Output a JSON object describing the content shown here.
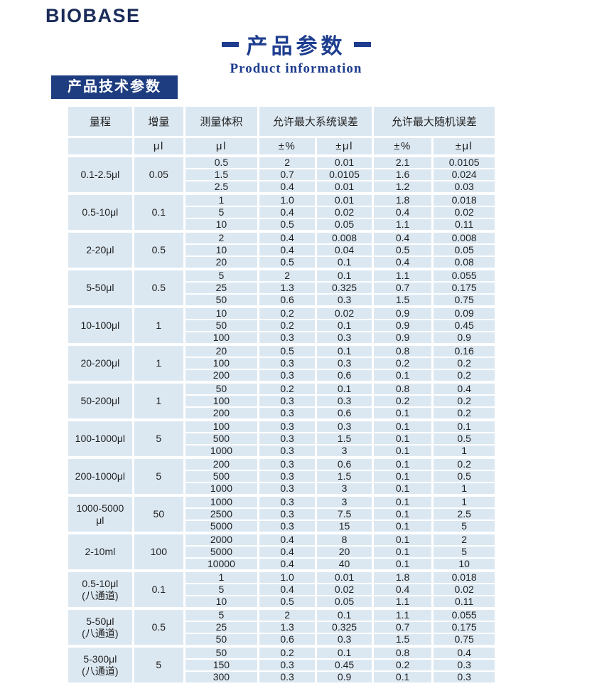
{
  "brand": {
    "logo_text": "BIOBASE"
  },
  "header": {
    "title_zh": "产品参数",
    "title_en": "Product information",
    "section_label": "产品技术参数"
  },
  "colors": {
    "brand_navy": "#1b2c59",
    "title_blue": "#1e3d8f",
    "badge_bg": "#1e3d80",
    "cell_bg": "#dce8f1",
    "text": "#1f1f1f"
  },
  "table": {
    "column_headers": {
      "range": "量程",
      "increment": "增量",
      "volume": "测量体积",
      "sys_error": "允许最大系统误差",
      "rand_error": "允许最大随机误差"
    },
    "unit_row": [
      "",
      "μl",
      "μl",
      "±%",
      "±μl",
      "±%",
      "±μl"
    ],
    "groups": [
      {
        "range": "0.1-2.5μl",
        "increment": "0.05",
        "rows": [
          [
            "0.5",
            "2",
            "0.01",
            "2.1",
            "0.0105"
          ],
          [
            "1.5",
            "0.7",
            "0.0105",
            "1.6",
            "0.024"
          ],
          [
            "2.5",
            "0.4",
            "0.01",
            "1.2",
            "0.03"
          ]
        ]
      },
      {
        "range": "0.5-10μl",
        "increment": "0.1",
        "rows": [
          [
            "1",
            "1.0",
            "0.01",
            "1.8",
            "0.018"
          ],
          [
            "5",
            "0.4",
            "0.02",
            "0.4",
            "0.02"
          ],
          [
            "10",
            "0.5",
            "0.05",
            "1.1",
            "0.11"
          ]
        ]
      },
      {
        "range": "2-20μl",
        "increment": "0.5",
        "rows": [
          [
            "2",
            "0.4",
            "0.008",
            "0.4",
            "0.008"
          ],
          [
            "10",
            "0.4",
            "0.04",
            "0.5",
            "0.05"
          ],
          [
            "20",
            "0.5",
            "0.1",
            "0.4",
            "0.08"
          ]
        ]
      },
      {
        "range": "5-50μl",
        "increment": "0.5",
        "rows": [
          [
            "5",
            "2",
            "0.1",
            "1.1",
            "0.055"
          ],
          [
            "25",
            "1.3",
            "0.325",
            "0.7",
            "0.175"
          ],
          [
            "50",
            "0.6",
            "0.3",
            "1.5",
            "0.75"
          ]
        ]
      },
      {
        "range": "10-100μl",
        "increment": "1",
        "rows": [
          [
            "10",
            "0.2",
            "0.02",
            "0.9",
            "0.09"
          ],
          [
            "50",
            "0.2",
            "0.1",
            "0.9",
            "0.45"
          ],
          [
            "100",
            "0.3",
            "0.3",
            "0.9",
            "0.9"
          ]
        ]
      },
      {
        "range": "20-200μl",
        "increment": "1",
        "rows": [
          [
            "20",
            "0.5",
            "0.1",
            "0.8",
            "0.16"
          ],
          [
            "100",
            "0.3",
            "0.3",
            "0.2",
            "0.2"
          ],
          [
            "200",
            "0.3",
            "0.6",
            "0.1",
            "0.2"
          ]
        ]
      },
      {
        "range": "50-200μl",
        "increment": "1",
        "rows": [
          [
            "50",
            "0.2",
            "0.1",
            "0.8",
            "0.4"
          ],
          [
            "100",
            "0.3",
            "0.3",
            "0.2",
            "0.2"
          ],
          [
            "200",
            "0.3",
            "0.6",
            "0.1",
            "0.2"
          ]
        ]
      },
      {
        "range": "100-1000μl",
        "increment": "5",
        "rows": [
          [
            "100",
            "0.3",
            "0.3",
            "0.1",
            "0.1"
          ],
          [
            "500",
            "0.3",
            "1.5",
            "0.1",
            "0.5"
          ],
          [
            "1000",
            "0.3",
            "3",
            "0.1",
            "1"
          ]
        ]
      },
      {
        "range": "200-1000μl",
        "increment": "5",
        "rows": [
          [
            "200",
            "0.3",
            "0.6",
            "0.1",
            "0.2"
          ],
          [
            "500",
            "0.3",
            "1.5",
            "0.1",
            "0.5"
          ],
          [
            "1000",
            "0.3",
            "3",
            "0.1",
            "1"
          ]
        ]
      },
      {
        "range": "1000-5000\nμl",
        "increment": "50",
        "rows": [
          [
            "1000",
            "0.3",
            "3",
            "0.1",
            "1"
          ],
          [
            "2500",
            "0.3",
            "7.5",
            "0.1",
            "2.5"
          ],
          [
            "5000",
            "0.3",
            "15",
            "0.1",
            "5"
          ]
        ]
      },
      {
        "range": "2-10ml",
        "increment": "100",
        "rows": [
          [
            "2000",
            "0.4",
            "8",
            "0.1",
            "2"
          ],
          [
            "5000",
            "0.4",
            "20",
            "0.1",
            "5"
          ],
          [
            "10000",
            "0.4",
            "40",
            "0.1",
            "10"
          ]
        ]
      },
      {
        "range": "0.5-10μl\n(八通道)",
        "increment": "0.1",
        "rows": [
          [
            "1",
            "1.0",
            "0.01",
            "1.8",
            "0.018"
          ],
          [
            "5",
            "0.4",
            "0.02",
            "0.4",
            "0.02"
          ],
          [
            "10",
            "0.5",
            "0.05",
            "1.1",
            "0.11"
          ]
        ]
      },
      {
        "range": "5-50μl\n(八通道)",
        "increment": "0.5",
        "rows": [
          [
            "5",
            "2",
            "0.1",
            "1.1",
            "0.055"
          ],
          [
            "25",
            "1.3",
            "0.325",
            "0.7",
            "0.175"
          ],
          [
            "50",
            "0.6",
            "0.3",
            "1.5",
            "0.75"
          ]
        ]
      },
      {
        "range": "5-300μl\n(八通道)",
        "increment": "5",
        "rows": [
          [
            "50",
            "0.2",
            "0.1",
            "0.8",
            "0.4"
          ],
          [
            "150",
            "0.3",
            "0.45",
            "0.2",
            "0.3"
          ],
          [
            "300",
            "0.3",
            "0.9",
            "0.1",
            "0.3"
          ]
        ]
      }
    ]
  }
}
